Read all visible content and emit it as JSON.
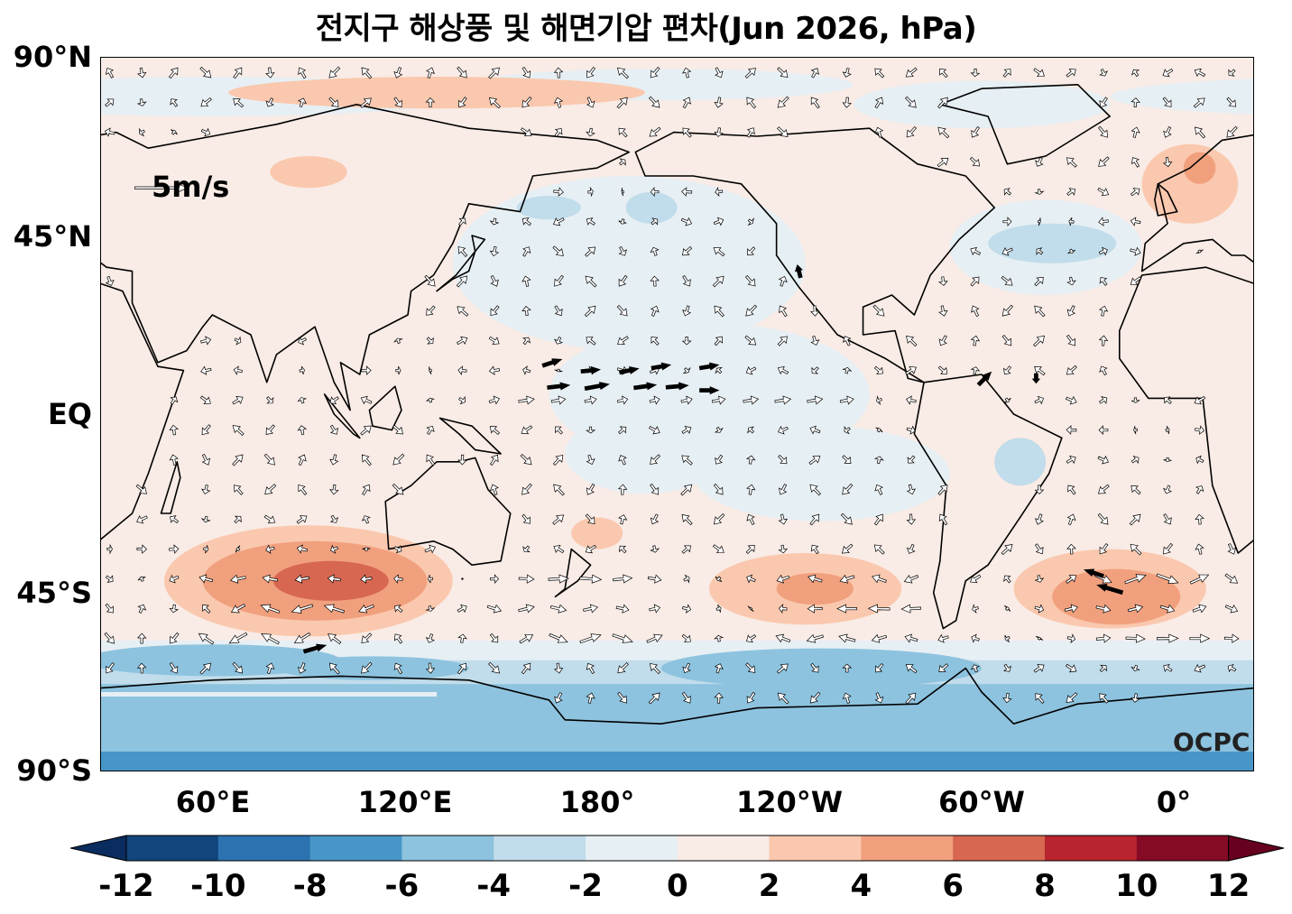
{
  "title": "전지구 해상풍 및 해면기압 편차(Jun 2026, hPa)",
  "lat_labels": [
    "90°N",
    "45°N",
    "EQ",
    "45°S",
    "90°S"
  ],
  "lon_labels": [
    "60°E",
    "120°E",
    "180°",
    "120°W",
    "60°W",
    "0°"
  ],
  "reference_vector": "5m/s",
  "watermark": "OCPC",
  "colorbar": {
    "levels": [
      "-12",
      "-10",
      "-8",
      "-6",
      "-4",
      "-2",
      "0",
      "2",
      "4",
      "6",
      "8",
      "10",
      "12"
    ],
    "colors": [
      "#11457c",
      "#2c72b1",
      "#4896c8",
      "#8dc3df",
      "#c1dcea",
      "#e6eff4",
      "#f9ebe5",
      "#fac8ae",
      "#f1a07e",
      "#d76750",
      "#b8242f",
      "#850a24"
    ],
    "extend_low": "#0b2c5e",
    "extend_high": "#67001f"
  }
}
